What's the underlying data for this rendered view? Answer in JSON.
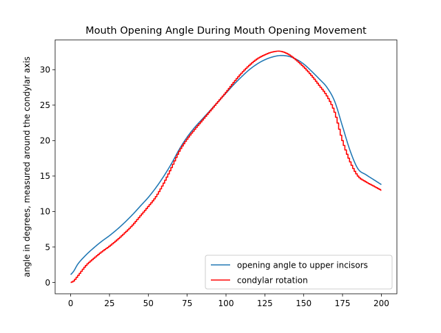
{
  "chart_data": {
    "type": "line",
    "title": "Mouth Opening Angle During Mouth Opening Movement",
    "xlabel": "",
    "ylabel": "angle in degrees, measured around the condylar axis",
    "xlim": [
      -10,
      210
    ],
    "ylim": [
      -1.6,
      34.2
    ],
    "xticks": [
      0,
      25,
      50,
      75,
      100,
      125,
      150,
      175,
      200
    ],
    "yticks": [
      0,
      5,
      10,
      15,
      20,
      25,
      30
    ],
    "grid": false,
    "legend_position": "bottom-right",
    "series": [
      {
        "name": "opening angle to upper incisors",
        "color": "#1f77b4",
        "step": false,
        "x": [
          0,
          2,
          5,
          10,
          15,
          20,
          25,
          30,
          35,
          40,
          45,
          50,
          55,
          60,
          65,
          70,
          75,
          80,
          85,
          90,
          95,
          100,
          105,
          110,
          115,
          120,
          125,
          130,
          135,
          140,
          145,
          150,
          155,
          160,
          165,
          170,
          175,
          180,
          185,
          190,
          195,
          200
        ],
        "y": [
          1.1,
          1.6,
          2.7,
          3.9,
          4.9,
          5.8,
          6.6,
          7.5,
          8.5,
          9.6,
          10.8,
          12.0,
          13.4,
          15.0,
          16.8,
          18.8,
          20.5,
          21.9,
          23.1,
          24.3,
          25.5,
          26.7,
          27.9,
          29.0,
          30.0,
          30.8,
          31.4,
          31.8,
          32.0,
          31.9,
          31.5,
          30.8,
          29.8,
          28.7,
          27.5,
          25.5,
          22.0,
          18.5,
          16.0,
          15.2,
          14.5,
          13.8
        ]
      },
      {
        "name": "condylar rotation",
        "color": "#ff0000",
        "step": true,
        "x": [
          0,
          2,
          5,
          10,
          15,
          20,
          25,
          30,
          35,
          40,
          45,
          50,
          55,
          60,
          65,
          70,
          75,
          80,
          85,
          90,
          95,
          100,
          105,
          110,
          115,
          120,
          125,
          130,
          135,
          140,
          145,
          150,
          155,
          160,
          165,
          170,
          175,
          180,
          185,
          190,
          195,
          200
        ],
        "y": [
          0.0,
          0.2,
          1.0,
          2.4,
          3.4,
          4.3,
          5.1,
          6.0,
          7.0,
          8.1,
          9.4,
          10.7,
          12.1,
          14.0,
          16.2,
          18.5,
          20.2,
          21.6,
          22.9,
          24.2,
          25.5,
          26.8,
          28.2,
          29.5,
          30.6,
          31.5,
          32.1,
          32.5,
          32.6,
          32.2,
          31.4,
          30.4,
          29.2,
          27.8,
          26.3,
          24.0,
          20.0,
          17.0,
          15.0,
          14.2,
          13.6,
          13.0
        ]
      }
    ]
  }
}
